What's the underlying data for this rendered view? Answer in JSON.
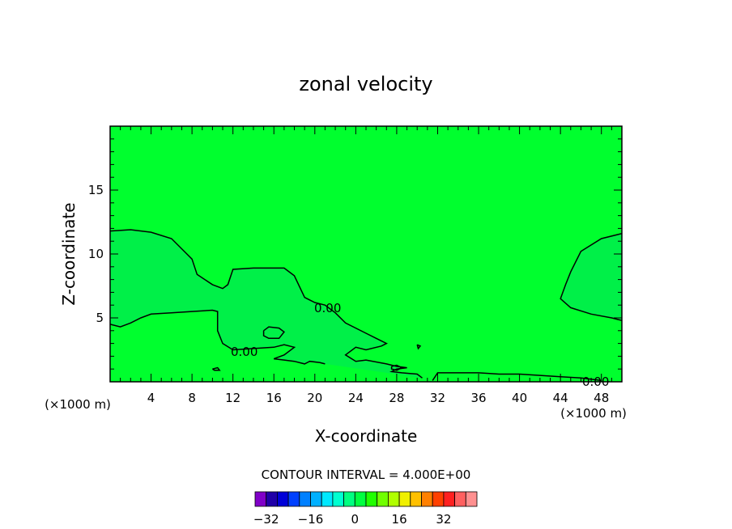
{
  "chart_data": {
    "type": "heatmap",
    "title": "zonal velocity",
    "xlabel": "X-coordinate",
    "ylabel": "Z-coordinate",
    "x_unit_left": "(×1000 m)",
    "x_unit_right": "(×1000 m)",
    "xlim": [
      0,
      50
    ],
    "ylim": [
      0,
      20
    ],
    "x_ticks": [
      4,
      8,
      12,
      16,
      20,
      24,
      28,
      32,
      36,
      40,
      44,
      48
    ],
    "y_ticks": [
      5,
      10,
      15
    ],
    "contour_label": "0.00",
    "contour_interval_text": "CONTOUR INTERVAL = 4.000E+00",
    "background_color": "#00ff2e",
    "region_color": "#00f048",
    "colorbar": {
      "ticks": [
        -32,
        -16,
        0,
        16,
        32
      ],
      "colors": [
        "#8000c8",
        "#2000a8",
        "#0000d8",
        "#0040ff",
        "#0080ff",
        "#00b0ff",
        "#00e8ff",
        "#00ffd0",
        "#00ff80",
        "#00ff40",
        "#20ff00",
        "#70ff00",
        "#b0ff00",
        "#f0f000",
        "#ffc000",
        "#ff8000",
        "#ff4000",
        "#ff2020",
        "#ff6060",
        "#ff9090"
      ]
    },
    "zero_contours": [
      [
        [
          0,
          11.8
        ],
        [
          2,
          11.9
        ],
        [
          4,
          11.7
        ],
        [
          6,
          11.2
        ],
        [
          7.5,
          10.0
        ],
        [
          8,
          9.6
        ],
        [
          8.5,
          8.4
        ],
        [
          10,
          7.6
        ],
        [
          11,
          7.3
        ],
        [
          11.5,
          7.6
        ],
        [
          12,
          8.8
        ],
        [
          14,
          8.9
        ],
        [
          17,
          8.9
        ],
        [
          18,
          8.3
        ],
        [
          19,
          6.6
        ],
        [
          20,
          6.2
        ],
        [
          21,
          6.0
        ],
        [
          22,
          5.4
        ],
        [
          23,
          4.6
        ],
        [
          25,
          3.8
        ],
        [
          26,
          3.4
        ],
        [
          27,
          3.0
        ],
        [
          26.5,
          2.8
        ],
        [
          25,
          2.5
        ],
        [
          24,
          2.7
        ],
        [
          23,
          2.1
        ],
        [
          24,
          1.6
        ],
        [
          25,
          1.7
        ],
        [
          27,
          1.4
        ],
        [
          28,
          1.2
        ],
        [
          29,
          1.1
        ],
        [
          28,
          1.0
        ],
        [
          27.5,
          0.8
        ],
        [
          28.5,
          0.7
        ],
        [
          30,
          0.6
        ],
        [
          30.5,
          0.3
        ]
      ],
      [
        [
          0,
          4.5
        ],
        [
          1,
          4.3
        ],
        [
          2,
          4.6
        ],
        [
          3,
          5.0
        ],
        [
          4,
          5.3
        ],
        [
          6,
          5.4
        ],
        [
          8,
          5.5
        ],
        [
          10,
          5.6
        ],
        [
          10.5,
          5.5
        ],
        [
          10.5,
          4.0
        ],
        [
          11,
          3.0
        ],
        [
          12,
          2.5
        ],
        [
          14,
          2.6
        ],
        [
          16,
          2.7
        ],
        [
          17,
          2.9
        ],
        [
          18,
          2.7
        ],
        [
          17,
          2.1
        ],
        [
          16,
          1.8
        ],
        [
          17,
          1.7
        ],
        [
          18,
          1.6
        ],
        [
          19,
          1.4
        ],
        [
          19.5,
          1.6
        ],
        [
          20.5,
          1.5
        ],
        [
          21,
          1.4
        ]
      ],
      [
        [
          31.5,
          0.1
        ],
        [
          32,
          0.7
        ],
        [
          34,
          0.7
        ],
        [
          36,
          0.7
        ],
        [
          38,
          0.6
        ],
        [
          40,
          0.6
        ],
        [
          42,
          0.5
        ],
        [
          44,
          0.4
        ],
        [
          46,
          0.3
        ],
        [
          48,
          0.1
        ]
      ],
      [
        [
          50,
          11.6
        ],
        [
          48,
          11.2
        ],
        [
          46,
          10.2
        ],
        [
          45,
          8.6
        ],
        [
          44.5,
          7.6
        ],
        [
          44,
          6.5
        ],
        [
          45,
          5.8
        ],
        [
          47,
          5.3
        ],
        [
          49,
          5.0
        ],
        [
          50,
          4.8
        ]
      ],
      [
        [
          15,
          4.0
        ],
        [
          15.5,
          4.3
        ],
        [
          16.5,
          4.2
        ],
        [
          17,
          3.9
        ],
        [
          16.5,
          3.4
        ],
        [
          15.5,
          3.4
        ],
        [
          15,
          3.6
        ],
        [
          15,
          4.0
        ]
      ],
      [
        [
          27.5,
          1.2
        ],
        [
          28,
          1.3
        ],
        [
          28.5,
          1.1
        ],
        [
          28,
          0.9
        ],
        [
          27.5,
          1.0
        ],
        [
          27.5,
          1.2
        ]
      ],
      [
        [
          30,
          2.9
        ],
        [
          30.3,
          2.8
        ],
        [
          30.1,
          2.6
        ],
        [
          30,
          2.9
        ]
      ],
      [
        [
          10,
          1.0
        ],
        [
          10.5,
          1.1
        ],
        [
          10.7,
          0.9
        ],
        [
          10.2,
          0.9
        ],
        [
          10,
          1.0
        ]
      ]
    ]
  }
}
